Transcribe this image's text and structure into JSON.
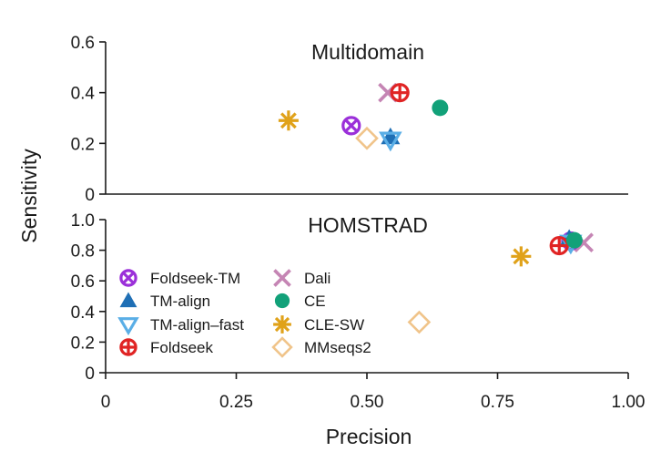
{
  "colors": {
    "Foldseek-TM": "#9b30d9",
    "TM-align": "#1f6fb5",
    "TM-align-fast": "#5aaee6",
    "Foldseek": "#e02424",
    "Dali": "#c585b4",
    "CE": "#12a179",
    "CLE-SW": "#e0a21a",
    "MMseqs2": "#f0c48a"
  },
  "chart_data": [
    {
      "type": "scatter",
      "title": "Multidomain",
      "xlabel": "Precision",
      "ylabel": "Sensitivity",
      "xlim": [
        0,
        1.0
      ],
      "ylim": [
        0,
        0.6
      ],
      "yticks": [
        {
          "value": 0,
          "label": "0"
        },
        {
          "value": 0.2,
          "label": "0.2"
        },
        {
          "value": 0.4,
          "label": "0.4"
        },
        {
          "value": 0.6,
          "label": "0.6"
        }
      ],
      "series": [
        {
          "name": "MMseqs2",
          "marker": "diamond",
          "x": 0.5,
          "y": 0.22
        },
        {
          "name": "CLE-SW",
          "marker": "asterisk",
          "x": 0.35,
          "y": 0.29
        },
        {
          "name": "Foldseek-TM",
          "marker": "circle-x",
          "x": 0.47,
          "y": 0.27
        },
        {
          "name": "TM-align",
          "marker": "triangle-up",
          "x": 0.545,
          "y": 0.225
        },
        {
          "name": "TM-align-fast",
          "marker": "triangle-down",
          "x": 0.545,
          "y": 0.215
        },
        {
          "name": "Dali",
          "marker": "x",
          "x": 0.54,
          "y": 0.4
        },
        {
          "name": "Foldseek",
          "marker": "circle-plus",
          "x": 0.563,
          "y": 0.4
        },
        {
          "name": "CE",
          "marker": "circle",
          "x": 0.64,
          "y": 0.34
        }
      ]
    },
    {
      "type": "scatter",
      "title": "HOMSTRAD",
      "xlabel": "Precision",
      "ylabel": "Sensitivity",
      "xlim": [
        0,
        1.0
      ],
      "ylim": [
        0,
        1.0
      ],
      "xticks": [
        {
          "value": 0,
          "label": "0"
        },
        {
          "value": 0.25,
          "label": "0.25"
        },
        {
          "value": 0.5,
          "label": "0.50"
        },
        {
          "value": 0.75,
          "label": "0.75"
        },
        {
          "value": 1.0,
          "label": "1.00"
        }
      ],
      "yticks": [
        {
          "value": 0,
          "label": "0"
        },
        {
          "value": 0.2,
          "label": "0.2"
        },
        {
          "value": 0.4,
          "label": "0.4"
        },
        {
          "value": 0.6,
          "label": "0.6"
        },
        {
          "value": 0.8,
          "label": "0.8"
        },
        {
          "value": 1.0,
          "label": "1.0"
        }
      ],
      "series": [
        {
          "name": "MMseqs2",
          "marker": "diamond",
          "x": 0.6,
          "y": 0.33
        },
        {
          "name": "CLE-SW",
          "marker": "asterisk",
          "x": 0.795,
          "y": 0.76
        },
        {
          "name": "Dali",
          "marker": "x",
          "x": 0.915,
          "y": 0.85
        },
        {
          "name": "Foldseek-TM",
          "marker": "circle-x",
          "x": 0.89,
          "y": 0.86
        },
        {
          "name": "TM-align",
          "marker": "triangle-up",
          "x": 0.887,
          "y": 0.875
        },
        {
          "name": "TM-align-fast",
          "marker": "triangle-down",
          "x": 0.89,
          "y": 0.85
        },
        {
          "name": "Foldseek",
          "marker": "circle-plus",
          "x": 0.868,
          "y": 0.83
        },
        {
          "name": "CE",
          "marker": "circle",
          "x": 0.897,
          "y": 0.865
        }
      ]
    }
  ],
  "legend": {
    "placement": "lower-left of bottom panel",
    "items": [
      {
        "name": "Foldseek-TM",
        "marker": "circle-x"
      },
      {
        "name": "TM-align",
        "marker": "triangle-up"
      },
      {
        "name": "TM-align–fast",
        "marker": "triangle-down",
        "color_key": "TM-align-fast"
      },
      {
        "name": "Foldseek",
        "marker": "circle-plus"
      },
      {
        "name": "Dali",
        "marker": "x"
      },
      {
        "name": "CE",
        "marker": "circle"
      },
      {
        "name": "CLE-SW",
        "marker": "asterisk"
      },
      {
        "name": "MMseqs2",
        "marker": "diamond"
      }
    ]
  }
}
